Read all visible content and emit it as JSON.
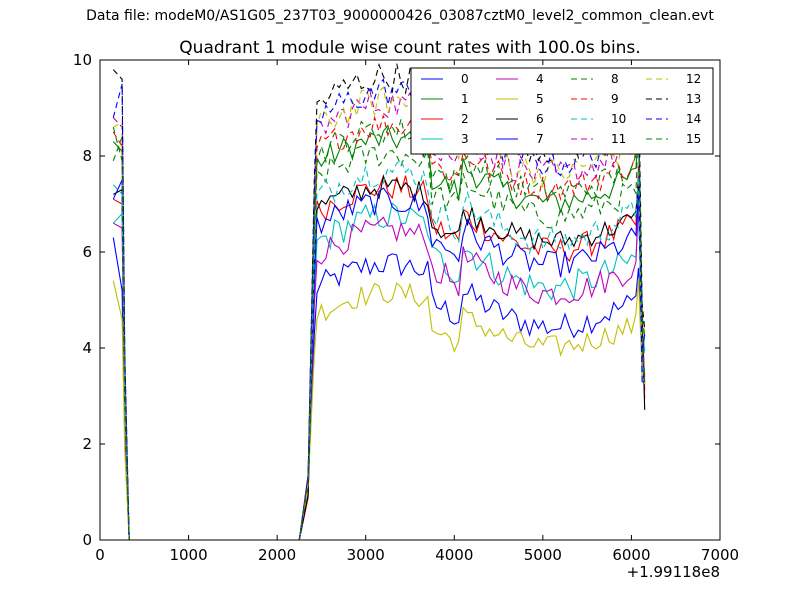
{
  "figure": {
    "suptitle": "Data file: modeM0/AS1G05_237T03_9000000426_03087cztM0_level2_common_clean.evt"
  },
  "chart_data": {
    "type": "line",
    "title": "Quadrant 1 module wise count rates with 100.0s bins.",
    "xlabel": "",
    "ylabel": "",
    "x_offset_label": "+1.99118e8",
    "xlim": [
      0,
      7000
    ],
    "ylim": [
      0,
      10
    ],
    "xticks": [
      0,
      1000,
      2000,
      3000,
      4000,
      5000,
      6000,
      7000
    ],
    "yticks": [
      0,
      2,
      4,
      6,
      8,
      10
    ],
    "grid": false,
    "legend_position": "top-right",
    "legend_columns": 4,
    "series": [
      {
        "name": "0",
        "color": "#0000ff",
        "dash": "solid",
        "base": 5.05,
        "pre": [
          6.3,
          5.2
        ],
        "amp": 0.35
      },
      {
        "name": "1",
        "color": "#008000",
        "dash": "solid",
        "base": 7.65,
        "pre": [
          8.3,
          8.1
        ],
        "amp": 0.35
      },
      {
        "name": "2",
        "color": "#ff0000",
        "dash": "solid",
        "base": 6.65,
        "pre": [
          7.1,
          7.0
        ],
        "amp": 0.35
      },
      {
        "name": "3",
        "color": "#00bfbf",
        "dash": "solid",
        "base": 5.95,
        "pre": [
          6.6,
          6.8
        ],
        "amp": 0.4
      },
      {
        "name": "4",
        "color": "#bf00bf",
        "dash": "solid",
        "base": 5.75,
        "pre": [
          6.6,
          6.5
        ],
        "amp": 0.35
      },
      {
        "name": "5",
        "color": "#bfbf00",
        "dash": "solid",
        "base": 4.55,
        "pre": [
          5.4,
          4.6
        ],
        "amp": 0.3
      },
      {
        "name": "6",
        "color": "#000000",
        "dash": "solid",
        "base": 6.75,
        "pre": [
          7.2,
          7.3
        ],
        "amp": 0.3
      },
      {
        "name": "7",
        "color": "#0000ff",
        "dash": "solid",
        "base": 6.35,
        "pre": [
          7.1,
          7.5
        ],
        "amp": 0.35
      },
      {
        "name": "8",
        "color": "#008000",
        "dash": "dashed",
        "base": 7.35,
        "pre": [
          7.9,
          8.4
        ],
        "amp": 0.35
      },
      {
        "name": "9",
        "color": "#ff0000",
        "dash": "dashed",
        "base": 7.95,
        "pre": [
          8.5,
          8.2
        ],
        "amp": 0.35
      },
      {
        "name": "10",
        "color": "#00bfbf",
        "dash": "dashed",
        "base": 6.9,
        "pre": [
          7.4,
          7.2
        ],
        "amp": 0.4
      },
      {
        "name": "11",
        "color": "#bf00bf",
        "dash": "dashed",
        "base": 8.3,
        "pre": [
          8.8,
          8.6
        ],
        "amp": 0.4
      },
      {
        "name": "12",
        "color": "#bfbf00",
        "dash": "dashed",
        "base": 8.35,
        "pre": [
          8.6,
          8.7
        ],
        "amp": 0.4
      },
      {
        "name": "13",
        "color": "#000000",
        "dash": "dashed",
        "base": 8.85,
        "pre": [
          9.8,
          9.6
        ],
        "amp": 0.4
      },
      {
        "name": "14",
        "color": "#0000ff",
        "dash": "dashed",
        "base": 8.55,
        "pre": [
          8.8,
          9.5
        ],
        "amp": 0.4
      },
      {
        "name": "15",
        "color": "#008000",
        "dash": "dashed",
        "base": 7.85,
        "pre": [
          8.6,
          7.9
        ],
        "amp": 0.35
      }
    ]
  }
}
